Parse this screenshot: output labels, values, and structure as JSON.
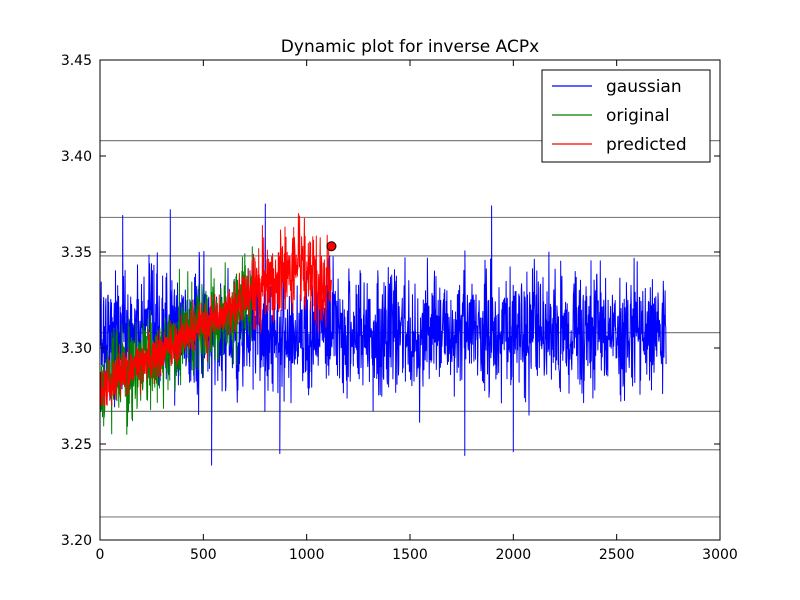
{
  "chart_data": {
    "type": "line",
    "title": "Dynamic plot for inverse ACPx",
    "xlabel": "",
    "ylabel": "",
    "xlim": [
      0,
      3000
    ],
    "ylim": [
      3.2,
      3.45
    ],
    "xticks": [
      0,
      500,
      1000,
      1500,
      2000,
      2500,
      3000
    ],
    "xtick_labels": [
      "0",
      "500",
      "1000",
      "1500",
      "2000",
      "2500",
      "3000"
    ],
    "yticks": [
      3.2,
      3.25,
      3.3,
      3.35,
      3.4,
      3.45
    ],
    "ytick_labels": [
      "3.20",
      "3.25",
      "3.30",
      "3.35",
      "3.40",
      "3.45"
    ],
    "grid": false,
    "legend_position": "top-right",
    "reference_lines": {
      "orientation": "horizontal",
      "color": "#808080",
      "y": [
        3.408,
        3.368,
        3.348,
        3.308,
        3.267,
        3.247,
        3.212
      ]
    },
    "series": [
      {
        "name": "gaussian",
        "color": "#0000ff",
        "x_range": [
          0,
          2740
        ],
        "mean": 3.308,
        "approx_min": 3.239,
        "approx_max": 3.375,
        "note_points": [
          [
            110,
            3.369
          ],
          [
            340,
            3.372
          ],
          [
            540,
            3.239
          ],
          [
            800,
            3.375
          ],
          [
            870,
            3.245
          ],
          [
            1765,
            3.244
          ],
          [
            1895,
            3.374
          ],
          [
            2000,
            3.246
          ]
        ]
      },
      {
        "name": "original",
        "color": "#008000",
        "x_range": [
          0,
          740
        ],
        "start_value": 3.278,
        "end_value": 3.328,
        "approx_min": 3.255,
        "approx_max": 3.363
      },
      {
        "name": "predicted",
        "color": "#ff0000",
        "x_range": [
          0,
          1120
        ],
        "start_value": 3.279,
        "end_value": 3.33,
        "approx_min": 3.27,
        "approx_max": 3.37
      }
    ],
    "marker": {
      "x": 1120,
      "y": 3.353,
      "color": "#ff0000"
    }
  }
}
